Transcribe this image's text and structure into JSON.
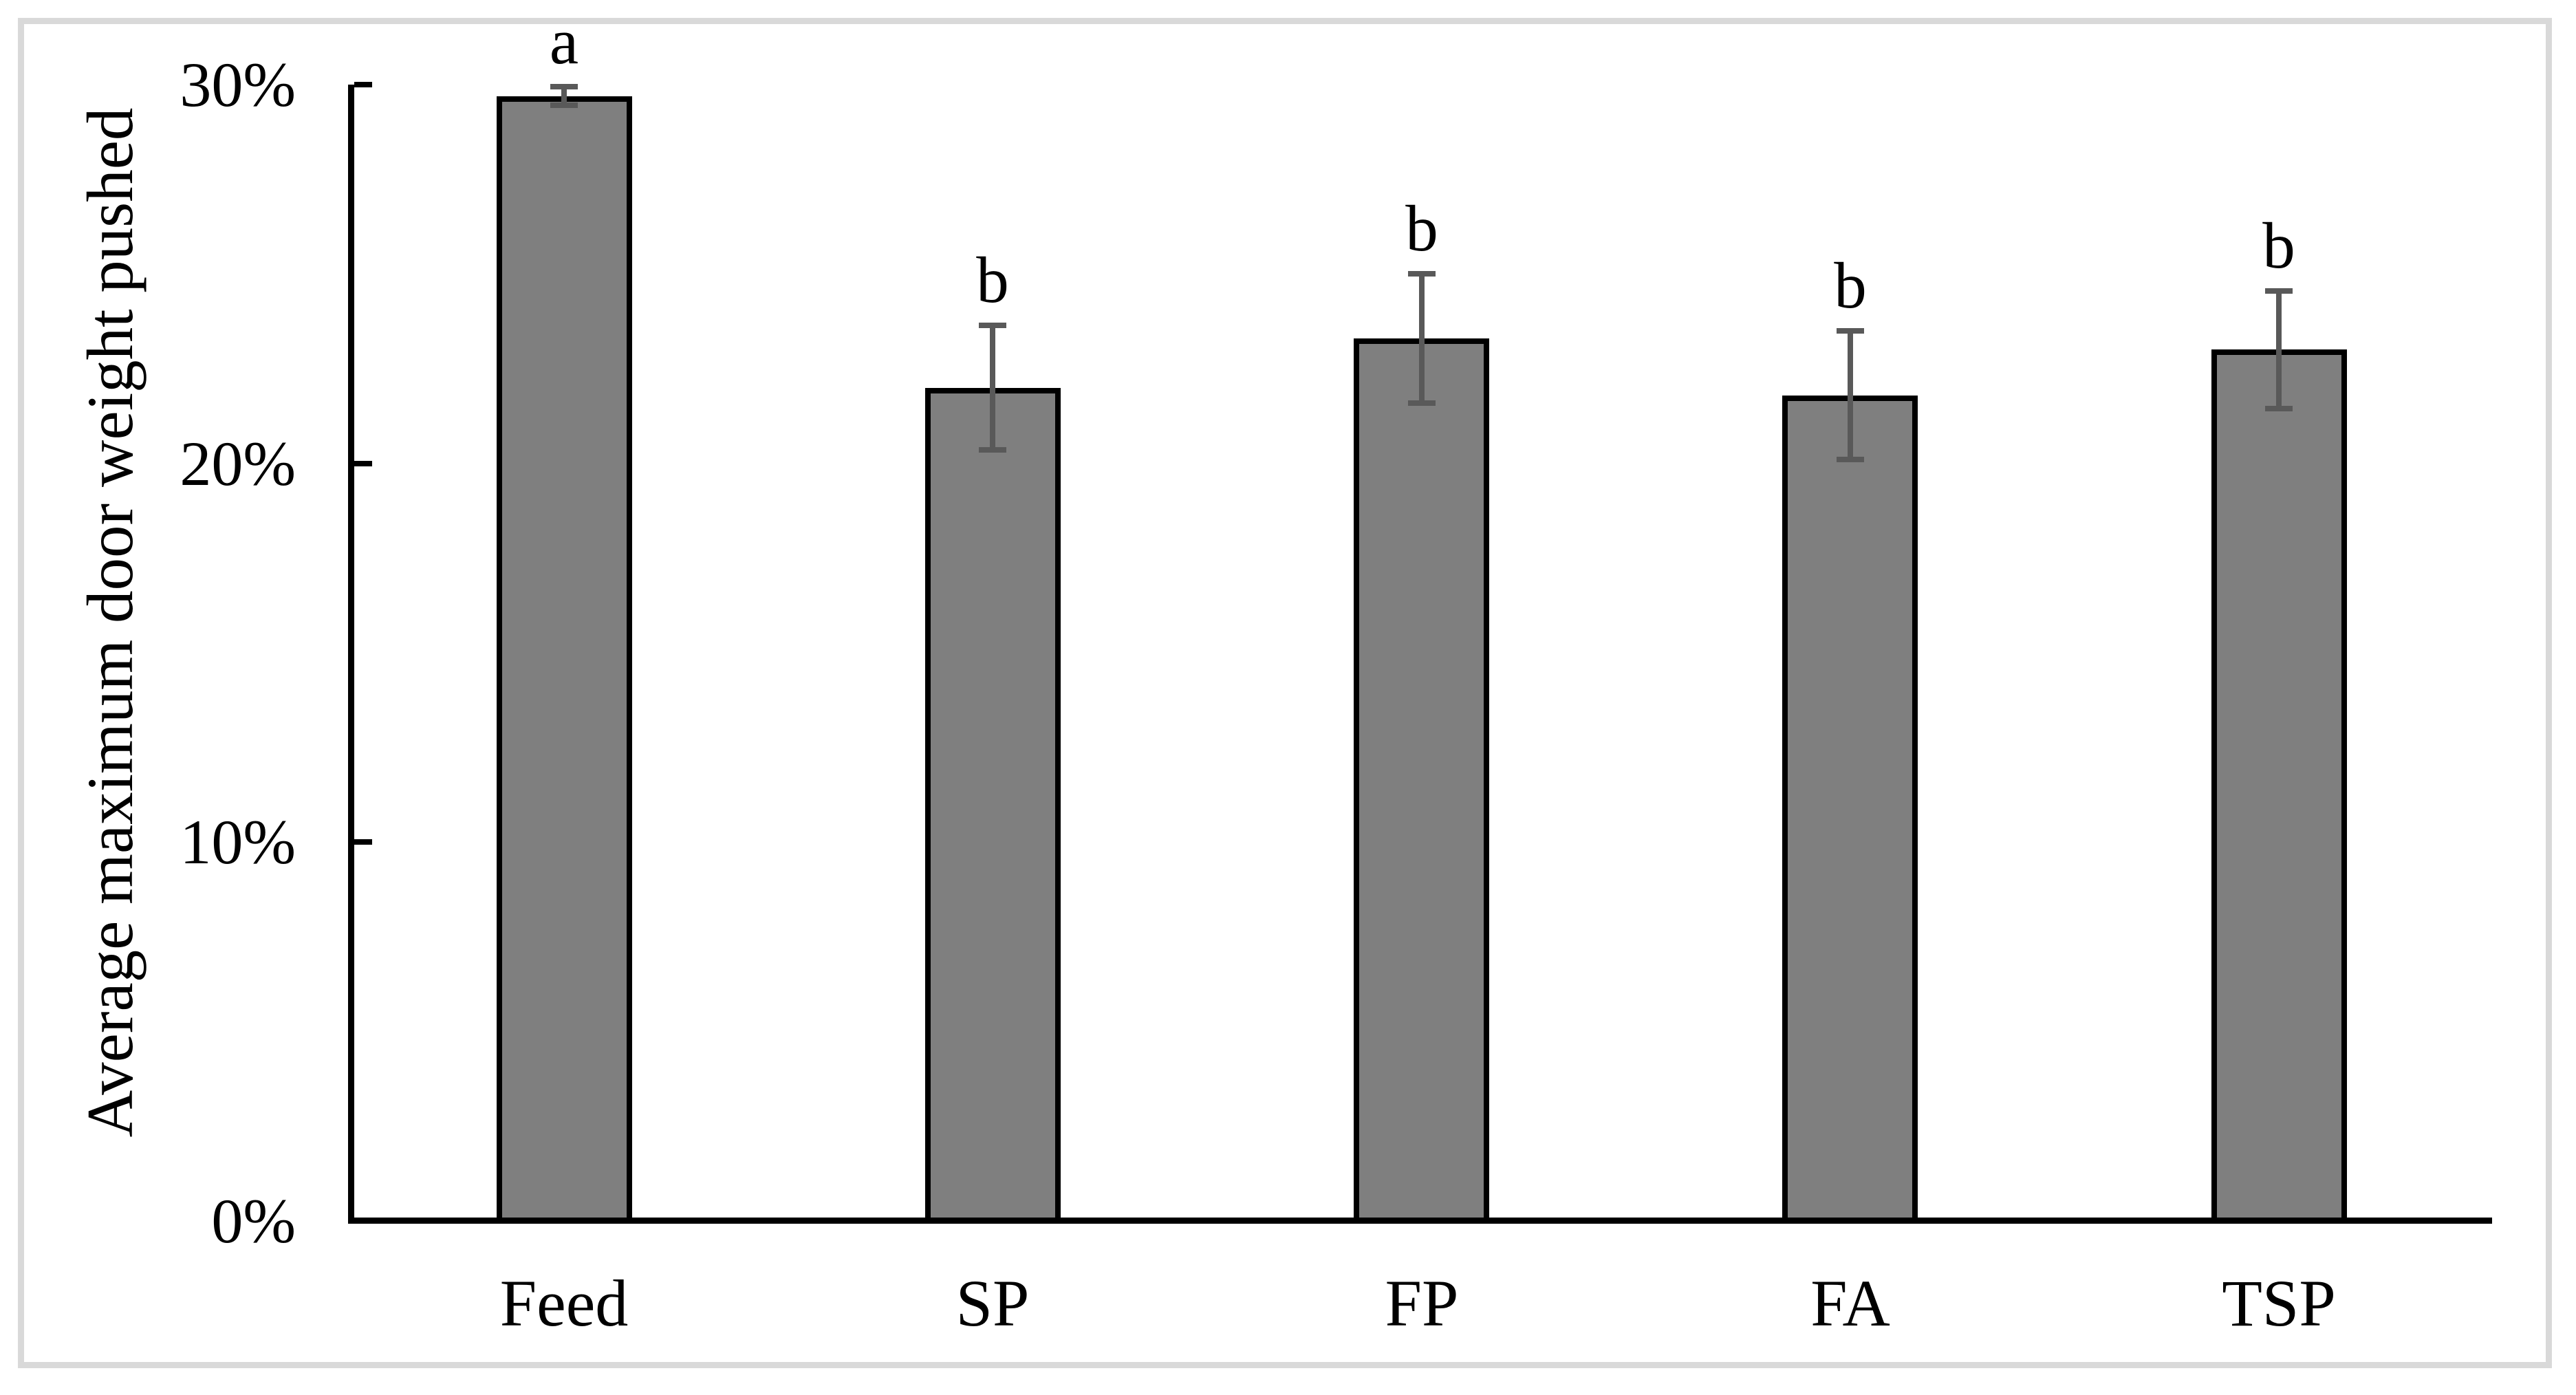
{
  "figure": {
    "background": "#ffffff",
    "frame_color": "#d9d9d9"
  },
  "chart_data": {
    "type": "bar",
    "title": "",
    "xlabel": "",
    "ylabel": "Average maximum door weight pushed",
    "categories": [
      "Feed",
      "SP",
      "FP",
      "FA",
      "TSP"
    ],
    "values": [
      29.7,
      22.0,
      23.3,
      21.8,
      23.0
    ],
    "value_unit": "%",
    "error_bars": {
      "plus": [
        0.25,
        1.65,
        1.7,
        1.7,
        1.55
      ],
      "minus": [
        0.25,
        1.65,
        1.7,
        1.7,
        1.55
      ]
    },
    "significance_letters": [
      "a",
      "b",
      "b",
      "b",
      "b"
    ],
    "yticks": {
      "values": [
        0,
        10,
        20,
        30
      ],
      "labels": [
        "0%",
        "10%",
        "20%",
        "30%"
      ]
    },
    "ylim": [
      0,
      30
    ],
    "grid": false,
    "legend_position": "none",
    "colors": {
      "bar_fill": "#7f7f7f",
      "bar_border": "#000000",
      "error_bar": "#595959",
      "axis": "#000000",
      "text": "#000000"
    }
  }
}
